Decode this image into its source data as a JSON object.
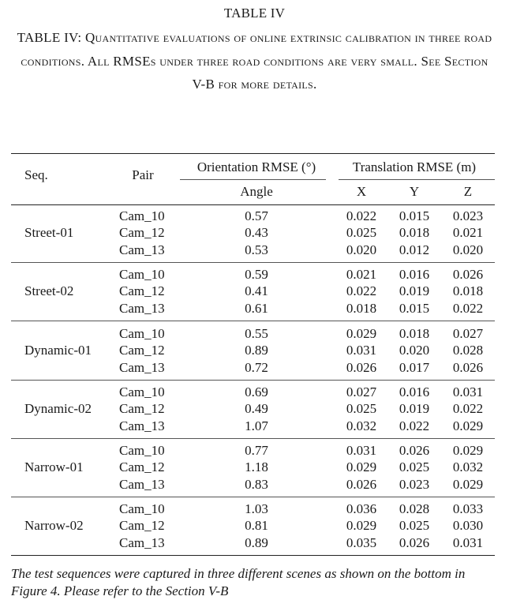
{
  "table_label": "TABLE IV",
  "caption": "TABLE IV: Quantitative evaluations of online extrinsic calibration in three road conditions. All RMSEs under three road conditions are very small. See Section V-B for more details.",
  "header": {
    "seq": "Seq.",
    "pair": "Pair",
    "orientation": "Orientation RMSE (°)",
    "translation": "Translation RMSE (m)",
    "angle": "Angle",
    "x": "X",
    "y": "Y",
    "z": "Z"
  },
  "groups": [
    {
      "seq": "Street-01",
      "rows": [
        {
          "pair": "Cam_10",
          "angle": "0.57",
          "x": "0.022",
          "y": "0.015",
          "z": "0.023"
        },
        {
          "pair": "Cam_12",
          "angle": "0.43",
          "x": "0.025",
          "y": "0.018",
          "z": "0.021"
        },
        {
          "pair": "Cam_13",
          "angle": "0.53",
          "x": "0.020",
          "y": "0.012",
          "z": "0.020"
        }
      ]
    },
    {
      "seq": "Street-02",
      "rows": [
        {
          "pair": "Cam_10",
          "angle": "0.59",
          "x": "0.021",
          "y": "0.016",
          "z": "0.026"
        },
        {
          "pair": "Cam_12",
          "angle": "0.41",
          "x": "0.022",
          "y": "0.019",
          "z": "0.018"
        },
        {
          "pair": "Cam_13",
          "angle": "0.61",
          "x": "0.018",
          "y": "0.015",
          "z": "0.022"
        }
      ]
    },
    {
      "seq": "Dynamic-01",
      "rows": [
        {
          "pair": "Cam_10",
          "angle": "0.55",
          "x": "0.029",
          "y": "0.018",
          "z": "0.027"
        },
        {
          "pair": "Cam_12",
          "angle": "0.89",
          "x": "0.031",
          "y": "0.020",
          "z": "0.028"
        },
        {
          "pair": "Cam_13",
          "angle": "0.72",
          "x": "0.026",
          "y": "0.017",
          "z": "0.026"
        }
      ]
    },
    {
      "seq": "Dynamic-02",
      "rows": [
        {
          "pair": "Cam_10",
          "angle": "0.69",
          "x": "0.027",
          "y": "0.016",
          "z": "0.031"
        },
        {
          "pair": "Cam_12",
          "angle": "0.49",
          "x": "0.025",
          "y": "0.019",
          "z": "0.022"
        },
        {
          "pair": "Cam_13",
          "angle": "1.07",
          "x": "0.032",
          "y": "0.022",
          "z": "0.029"
        }
      ]
    },
    {
      "seq": "Narrow-01",
      "rows": [
        {
          "pair": "Cam_10",
          "angle": "0.77",
          "x": "0.031",
          "y": "0.026",
          "z": "0.029"
        },
        {
          "pair": "Cam_12",
          "angle": "1.18",
          "x": "0.029",
          "y": "0.025",
          "z": "0.032"
        },
        {
          "pair": "Cam_13",
          "angle": "0.83",
          "x": "0.026",
          "y": "0.023",
          "z": "0.029"
        }
      ]
    },
    {
      "seq": "Narrow-02",
      "rows": [
        {
          "pair": "Cam_10",
          "angle": "1.03",
          "x": "0.036",
          "y": "0.028",
          "z": "0.033"
        },
        {
          "pair": "Cam_12",
          "angle": "0.81",
          "x": "0.029",
          "y": "0.025",
          "z": "0.030"
        },
        {
          "pair": "Cam_13",
          "angle": "0.89",
          "x": "0.035",
          "y": "0.026",
          "z": "0.031"
        }
      ]
    }
  ],
  "footnote": "The test sequences were captured in three different scenes as shown on the bottom in Figure 4. Please refer to the Section V-B"
}
